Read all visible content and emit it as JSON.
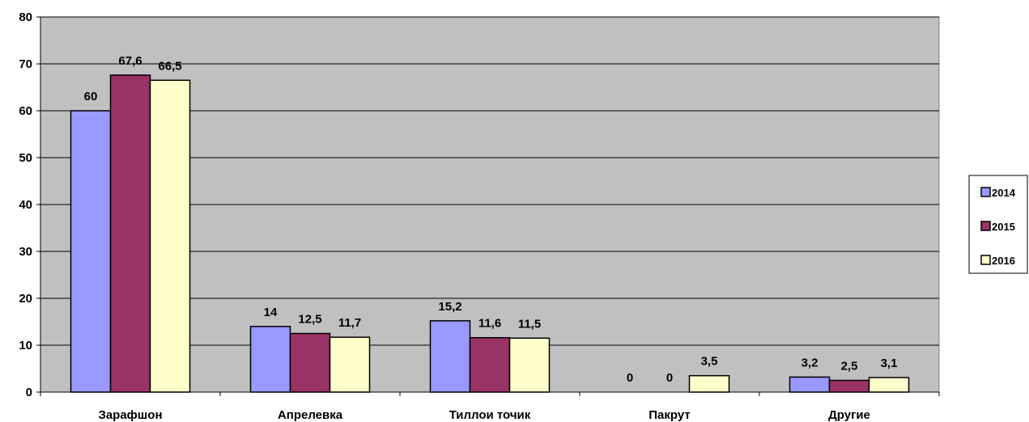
{
  "chart_data": {
    "type": "bar",
    "title": "",
    "xlabel": "",
    "ylabel": "",
    "ylim": [
      0,
      80
    ],
    "yticks": [
      "0",
      "10",
      "20",
      "30",
      "40",
      "50",
      "60",
      "70",
      "80"
    ],
    "grid": true,
    "legend_position": "right",
    "categories": [
      "Зарафшон",
      "Апрелевка",
      "Тиллои точик",
      "Пакрут",
      "Другие"
    ],
    "series": [
      {
        "name": "2014",
        "color": "#9999ff",
        "values": [
          60,
          14,
          15.2,
          0,
          3.2
        ],
        "labels": [
          "60",
          "14",
          "15,2",
          "0",
          "3,2"
        ]
      },
      {
        "name": "2015",
        "color": "#993366",
        "values": [
          67.6,
          12.5,
          11.6,
          0,
          2.5
        ],
        "labels": [
          "67,6",
          "12,5",
          "11,6",
          "0",
          "2,5"
        ]
      },
      {
        "name": "2016",
        "color": "#ffffcc",
        "values": [
          66.5,
          11.7,
          11.5,
          3.5,
          3.1
        ],
        "labels": [
          "66,5",
          "11,7",
          "11,5",
          "3,5",
          "3,1"
        ]
      }
    ],
    "plot_background": "#c0c0c0"
  }
}
